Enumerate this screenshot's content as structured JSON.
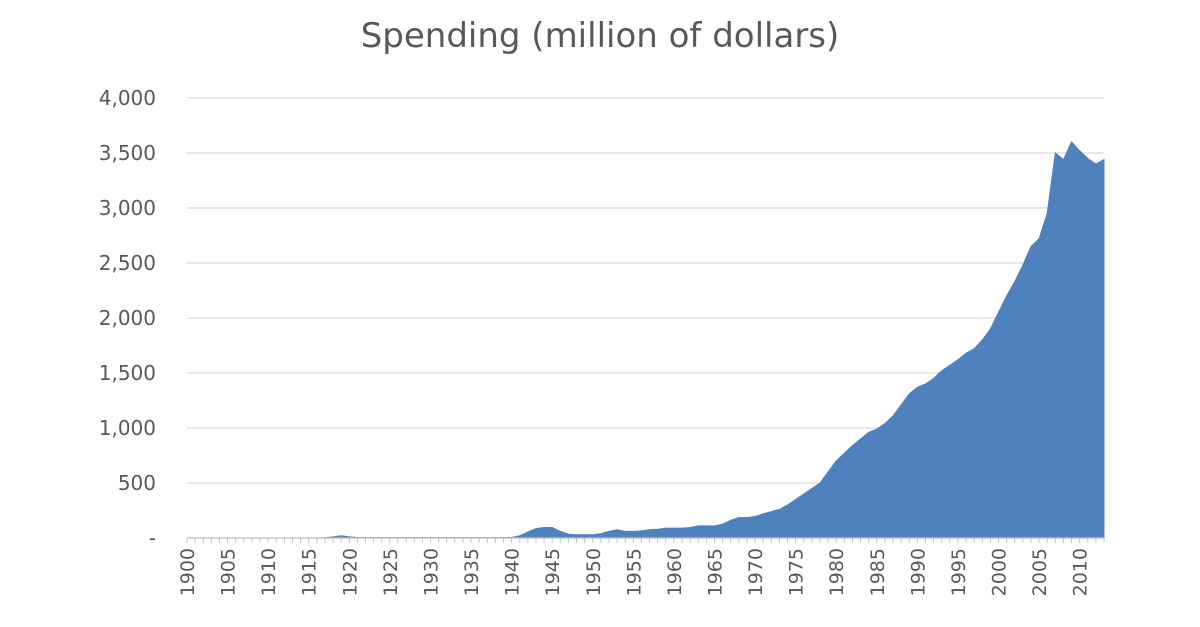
{
  "chart_data": {
    "type": "area",
    "title": "Spending (million of dollars)",
    "xlabel": "",
    "ylabel": "",
    "xlim": [
      1900,
      2013
    ],
    "ylim": [
      0,
      4000
    ],
    "grid": true,
    "legend": "none",
    "colors": {
      "area": "#4f81bd",
      "grid": "#d9d9d9",
      "axis": "#bfbfbf",
      "text": "#595959"
    },
    "y_ticks": [
      {
        "value": 0,
        "label": "-"
      },
      {
        "value": 500,
        "label": "500"
      },
      {
        "value": 1000,
        "label": "1,000"
      },
      {
        "value": 1500,
        "label": "1,500"
      },
      {
        "value": 2000,
        "label": "2,000"
      },
      {
        "value": 2500,
        "label": "2,500"
      },
      {
        "value": 3000,
        "label": "3,000"
      },
      {
        "value": 3500,
        "label": "3,500"
      },
      {
        "value": 4000,
        "label": "4,000"
      }
    ],
    "x_tick_labels": [
      "1900",
      "1905",
      "1910",
      "1915",
      "1920",
      "1925",
      "1930",
      "1935",
      "1940",
      "1945",
      "1950",
      "1955",
      "1960",
      "1965",
      "1970",
      "1975",
      "1980",
      "1985",
      "1990",
      "1995",
      "2000",
      "2005",
      "2010"
    ],
    "series": [
      {
        "x": [
          1900,
          1901,
          1902,
          1903,
          1904,
          1905,
          1906,
          1907,
          1908,
          1909,
          1910,
          1911,
          1912,
          1913,
          1914,
          1915,
          1916,
          1917,
          1918,
          1919,
          1920,
          1921,
          1922,
          1923,
          1924,
          1925,
          1926,
          1927,
          1928,
          1929,
          1930,
          1931,
          1932,
          1933,
          1934,
          1935,
          1936,
          1937,
          1938,
          1939,
          1940,
          1941,
          1942,
          1943,
          1944,
          1945,
          1946,
          1947,
          1948,
          1949,
          1950,
          1951,
          1952,
          1953,
          1954,
          1955,
          1956,
          1957,
          1958,
          1959,
          1960,
          1961,
          1962,
          1963,
          1964,
          1965,
          1966,
          1967,
          1968,
          1969,
          1970,
          1971,
          1972,
          1973,
          1974,
          1975,
          1976,
          1977,
          1978,
          1979,
          1980,
          1981,
          1982,
          1983,
          1984,
          1985,
          1986,
          1987,
          1988,
          1989,
          1990,
          1991,
          1992,
          1993,
          1994,
          1995,
          1996,
          1997,
          1998,
          1999,
          2000,
          2001,
          2002,
          2003,
          2004,
          2005,
          2006,
          2007,
          2008,
          2009,
          2010,
          2011,
          2012,
          2013
        ],
        "y": [
          0,
          0,
          0,
          0,
          0,
          0,
          0,
          0,
          0,
          0,
          0,
          0,
          0,
          0,
          0,
          0,
          0,
          2,
          10,
          20,
          10,
          5,
          3,
          3,
          3,
          3,
          3,
          3,
          3,
          3,
          3,
          3,
          3,
          3,
          3,
          3,
          3,
          3,
          3,
          3,
          5,
          20,
          55,
          85,
          95,
          95,
          60,
          35,
          30,
          30,
          30,
          40,
          60,
          75,
          60,
          60,
          65,
          75,
          80,
          90,
          90,
          90,
          95,
          110,
          110,
          110,
          125,
          160,
          185,
          185,
          195,
          220,
          240,
          260,
          300,
          350,
          400,
          450,
          500,
          600,
          700,
          770,
          840,
          900,
          960,
          990,
          1040,
          1110,
          1210,
          1310,
          1370,
          1400,
          1450,
          1520,
          1570,
          1620,
          1680,
          1720,
          1800,
          1900,
          2050,
          2200,
          2330,
          2480,
          2650,
          2720,
          2950,
          3500,
          3440,
          3600,
          3520,
          3450,
          3400,
          3440
        ]
      }
    ]
  }
}
